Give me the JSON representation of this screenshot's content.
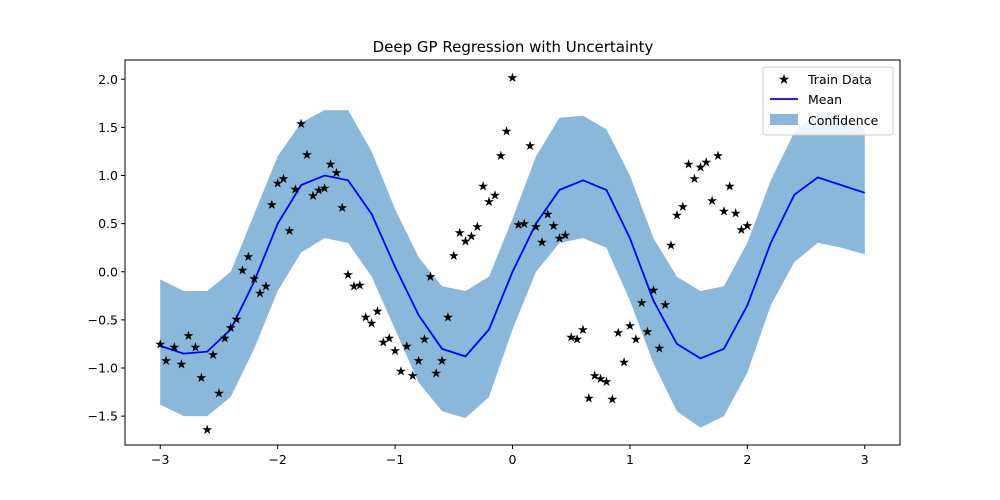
{
  "chart_data": {
    "type": "line",
    "title": "Deep GP Regression with Uncertainty",
    "xlabel": "",
    "ylabel": "",
    "xlim": [
      -3.3,
      3.3
    ],
    "ylim": [
      -1.8,
      2.2
    ],
    "x_ticks": [
      -3,
      -2,
      -1,
      0,
      1,
      2,
      3
    ],
    "x_tick_labels": [
      "−3",
      "−2",
      "−1",
      "0",
      "1",
      "2",
      "3"
    ],
    "y_ticks": [
      -1.5,
      -1.0,
      -0.5,
      0.0,
      0.5,
      1.0,
      1.5,
      2.0
    ],
    "y_tick_labels": [
      "−1.5",
      "−1.0",
      "−0.5",
      "0.0",
      "0.5",
      "1.0",
      "1.5",
      "2.0"
    ],
    "grid": false,
    "legend_position": "top-right",
    "legend": [
      "Train Data",
      "Mean",
      "Confidence"
    ],
    "colors": {
      "train": "#000000",
      "mean": "#0000ff",
      "confidence": "#8ab8db"
    },
    "mean": {
      "name": "Mean",
      "x": [
        -3.0,
        -2.8,
        -2.6,
        -2.4,
        -2.2,
        -2.0,
        -1.8,
        -1.6,
        -1.4,
        -1.2,
        -1.0,
        -0.8,
        -0.6,
        -0.4,
        -0.2,
        0.0,
        0.2,
        0.4,
        0.6,
        0.8,
        1.0,
        1.2,
        1.4,
        1.6,
        1.8,
        2.0,
        2.2,
        2.4,
        2.6,
        2.8,
        3.0
      ],
      "y": [
        -0.77,
        -0.85,
        -0.83,
        -0.6,
        -0.1,
        0.5,
        0.9,
        1.0,
        0.95,
        0.6,
        0.05,
        -0.45,
        -0.8,
        -0.88,
        -0.6,
        0.0,
        0.5,
        0.85,
        0.95,
        0.85,
        0.35,
        -0.3,
        -0.75,
        -0.9,
        -0.8,
        -0.35,
        0.3,
        0.8,
        0.98,
        0.9,
        0.82
      ]
    },
    "confidence": {
      "name": "Confidence",
      "x": [
        -3.0,
        -2.8,
        -2.6,
        -2.4,
        -2.2,
        -2.0,
        -1.8,
        -1.6,
        -1.4,
        -1.2,
        -1.0,
        -0.8,
        -0.6,
        -0.4,
        -0.2,
        0.0,
        0.2,
        0.4,
        0.6,
        0.8,
        1.0,
        1.2,
        1.4,
        1.6,
        1.8,
        2.0,
        2.2,
        2.4,
        2.6,
        2.8,
        3.0
      ],
      "upper": [
        -0.08,
        -0.2,
        -0.2,
        0.0,
        0.6,
        1.2,
        1.55,
        1.68,
        1.68,
        1.25,
        0.65,
        0.15,
        -0.15,
        -0.2,
        -0.05,
        0.55,
        1.2,
        1.6,
        1.62,
        1.48,
        1.0,
        0.35,
        -0.05,
        -0.2,
        -0.15,
        0.3,
        0.95,
        1.45,
        1.65,
        1.6,
        1.48
      ],
      "lower": [
        -1.38,
        -1.5,
        -1.5,
        -1.3,
        -0.8,
        -0.2,
        0.2,
        0.35,
        0.3,
        -0.05,
        -0.6,
        -1.15,
        -1.45,
        -1.52,
        -1.3,
        -0.6,
        0.0,
        0.3,
        0.35,
        0.25,
        -0.3,
        -0.95,
        -1.45,
        -1.62,
        -1.5,
        -1.05,
        -0.35,
        0.1,
        0.3,
        0.25,
        0.18
      ]
    },
    "train": {
      "name": "Train Data",
      "points": [
        [
          -3.0,
          -0.75
        ],
        [
          -2.95,
          -0.92
        ],
        [
          -2.88,
          -0.78
        ],
        [
          -2.82,
          -0.96
        ],
        [
          -2.76,
          -0.66
        ],
        [
          -2.7,
          -0.78
        ],
        [
          -2.65,
          -1.1
        ],
        [
          -2.6,
          -1.64
        ],
        [
          -2.55,
          -0.86
        ],
        [
          -2.5,
          -1.26
        ],
        [
          -2.45,
          -0.69
        ],
        [
          -2.4,
          -0.58
        ],
        [
          -2.35,
          -0.49
        ],
        [
          -2.3,
          0.02
        ],
        [
          -2.25,
          0.16
        ],
        [
          -2.2,
          -0.07
        ],
        [
          -2.15,
          -0.22
        ],
        [
          -2.1,
          -0.15
        ],
        [
          -2.05,
          0.7
        ],
        [
          -2.0,
          0.92
        ],
        [
          -1.95,
          0.97
        ],
        [
          -1.9,
          0.43
        ],
        [
          -1.85,
          0.86
        ],
        [
          -1.8,
          1.54
        ],
        [
          -1.75,
          1.22
        ],
        [
          -1.7,
          0.79
        ],
        [
          -1.65,
          0.85
        ],
        [
          -1.6,
          0.87
        ],
        [
          -1.55,
          1.12
        ],
        [
          -1.5,
          1.03
        ],
        [
          -1.45,
          0.67
        ],
        [
          -1.4,
          -0.03
        ],
        [
          -1.35,
          -0.15
        ],
        [
          -1.3,
          -0.14
        ],
        [
          -1.25,
          -0.47
        ],
        [
          -1.2,
          -0.53
        ],
        [
          -1.15,
          -0.41
        ],
        [
          -1.1,
          -0.73
        ],
        [
          -1.05,
          -0.69
        ],
        [
          -1.0,
          -0.82
        ],
        [
          -0.95,
          -1.03
        ],
        [
          -0.9,
          -0.77
        ],
        [
          -0.85,
          -1.08
        ],
        [
          -0.8,
          -0.92
        ],
        [
          -0.75,
          -0.7
        ],
        [
          -0.7,
          -0.05
        ],
        [
          -0.65,
          -1.05
        ],
        [
          -0.6,
          -0.92
        ],
        [
          -0.55,
          -0.47
        ],
        [
          -0.5,
          0.17
        ],
        [
          -0.45,
          0.41
        ],
        [
          -0.4,
          0.32
        ],
        [
          -0.35,
          0.37
        ],
        [
          -0.3,
          0.47
        ],
        [
          -0.25,
          0.89
        ],
        [
          -0.2,
          0.73
        ],
        [
          -0.15,
          0.8
        ],
        [
          -0.1,
          1.21
        ],
        [
          -0.05,
          1.46
        ],
        [
          0.0,
          2.02
        ],
        [
          0.05,
          0.49
        ],
        [
          0.1,
          0.5
        ],
        [
          0.15,
          1.31
        ],
        [
          0.2,
          0.47
        ],
        [
          0.25,
          0.31
        ],
        [
          0.3,
          0.6
        ],
        [
          0.35,
          0.48
        ],
        [
          0.4,
          0.35
        ],
        [
          0.45,
          0.38
        ],
        [
          0.5,
          -0.68
        ],
        [
          0.55,
          -0.7
        ],
        [
          0.6,
          -0.6
        ],
        [
          0.65,
          -1.31
        ],
        [
          0.7,
          -1.08
        ],
        [
          0.75,
          -1.11
        ],
        [
          0.8,
          -1.14
        ],
        [
          0.85,
          -1.32
        ],
        [
          0.9,
          -0.63
        ],
        [
          0.95,
          -0.94
        ],
        [
          1.0,
          -0.56
        ],
        [
          1.05,
          -0.7
        ],
        [
          1.1,
          -0.32
        ],
        [
          1.15,
          -0.62
        ],
        [
          1.2,
          -0.19
        ],
        [
          1.25,
          -0.79
        ],
        [
          1.3,
          -0.34
        ],
        [
          1.35,
          0.28
        ],
        [
          1.4,
          0.59
        ],
        [
          1.45,
          0.68
        ],
        [
          1.5,
          1.12
        ],
        [
          1.55,
          0.97
        ],
        [
          1.6,
          1.09
        ],
        [
          1.65,
          1.14
        ],
        [
          1.7,
          0.74
        ],
        [
          1.75,
          1.21
        ],
        [
          1.8,
          0.63
        ],
        [
          1.85,
          0.89
        ],
        [
          1.9,
          0.61
        ],
        [
          1.95,
          0.44
        ],
        [
          2.0,
          0.48
        ]
      ]
    }
  }
}
